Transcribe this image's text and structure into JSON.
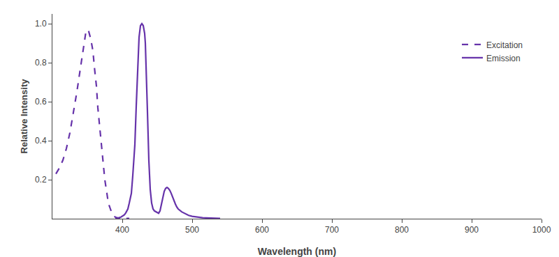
{
  "chart_data": {
    "type": "line",
    "xlabel": "Wavelength (nm)",
    "ylabel": "Relative Intensity",
    "xlim": [
      300,
      1000
    ],
    "ylim": [
      0,
      1.05
    ],
    "xticks": [
      400,
      500,
      600,
      700,
      800,
      900,
      1000
    ],
    "yticks": [
      0.2,
      0.4,
      0.6,
      0.8,
      {
        "value": 1.0,
        "label": "1.0"
      }
    ],
    "grid": false,
    "legend": "upper right",
    "series": [
      {
        "name": "Excitation",
        "color": "#6633AA",
        "line_style": "dashed",
        "x": [
          305,
          310,
          315,
          320,
          325,
          330,
          335,
          340,
          345,
          348,
          350,
          352,
          355,
          358,
          360,
          363,
          365,
          368,
          370,
          373,
          375,
          378,
          380,
          383,
          385,
          388,
          390,
          393,
          395,
          398,
          400,
          405,
          410
        ],
        "values": [
          0.23,
          0.26,
          0.3,
          0.36,
          0.44,
          0.54,
          0.65,
          0.77,
          0.9,
          0.96,
          0.97,
          0.96,
          0.92,
          0.86,
          0.78,
          0.68,
          0.57,
          0.46,
          0.36,
          0.27,
          0.2,
          0.13,
          0.08,
          0.05,
          0.03,
          0.015,
          0.008,
          0.004,
          0.002,
          0.001,
          0.001,
          0.001,
          0.001
        ]
      },
      {
        "name": "Emission",
        "color": "#6633AA",
        "line_style": "solid",
        "x": [
          390,
          393,
          395,
          398,
          400,
          403,
          405,
          408,
          410,
          413,
          415,
          418,
          420,
          422,
          424,
          426,
          428,
          430,
          431,
          432,
          433,
          434,
          436,
          438,
          440,
          442,
          444,
          446,
          448,
          450,
          452,
          454,
          456,
          458,
          460,
          462,
          464,
          466,
          468,
          470,
          472,
          474,
          476,
          478,
          480,
          485,
          490,
          495,
          500,
          505,
          510,
          515,
          520,
          525,
          530,
          535,
          540
        ],
        "values": [
          0.002,
          0.003,
          0.005,
          0.008,
          0.012,
          0.02,
          0.03,
          0.05,
          0.08,
          0.13,
          0.22,
          0.38,
          0.58,
          0.78,
          0.93,
          0.99,
          1.0,
          0.99,
          0.97,
          0.95,
          0.9,
          0.8,
          0.55,
          0.3,
          0.15,
          0.08,
          0.05,
          0.04,
          0.035,
          0.03,
          0.028,
          0.04,
          0.07,
          0.11,
          0.14,
          0.155,
          0.16,
          0.155,
          0.145,
          0.13,
          0.11,
          0.09,
          0.075,
          0.06,
          0.05,
          0.035,
          0.025,
          0.017,
          0.012,
          0.009,
          0.007,
          0.005,
          0.004,
          0.003,
          0.002,
          0.001,
          0.001
        ]
      }
    ]
  }
}
